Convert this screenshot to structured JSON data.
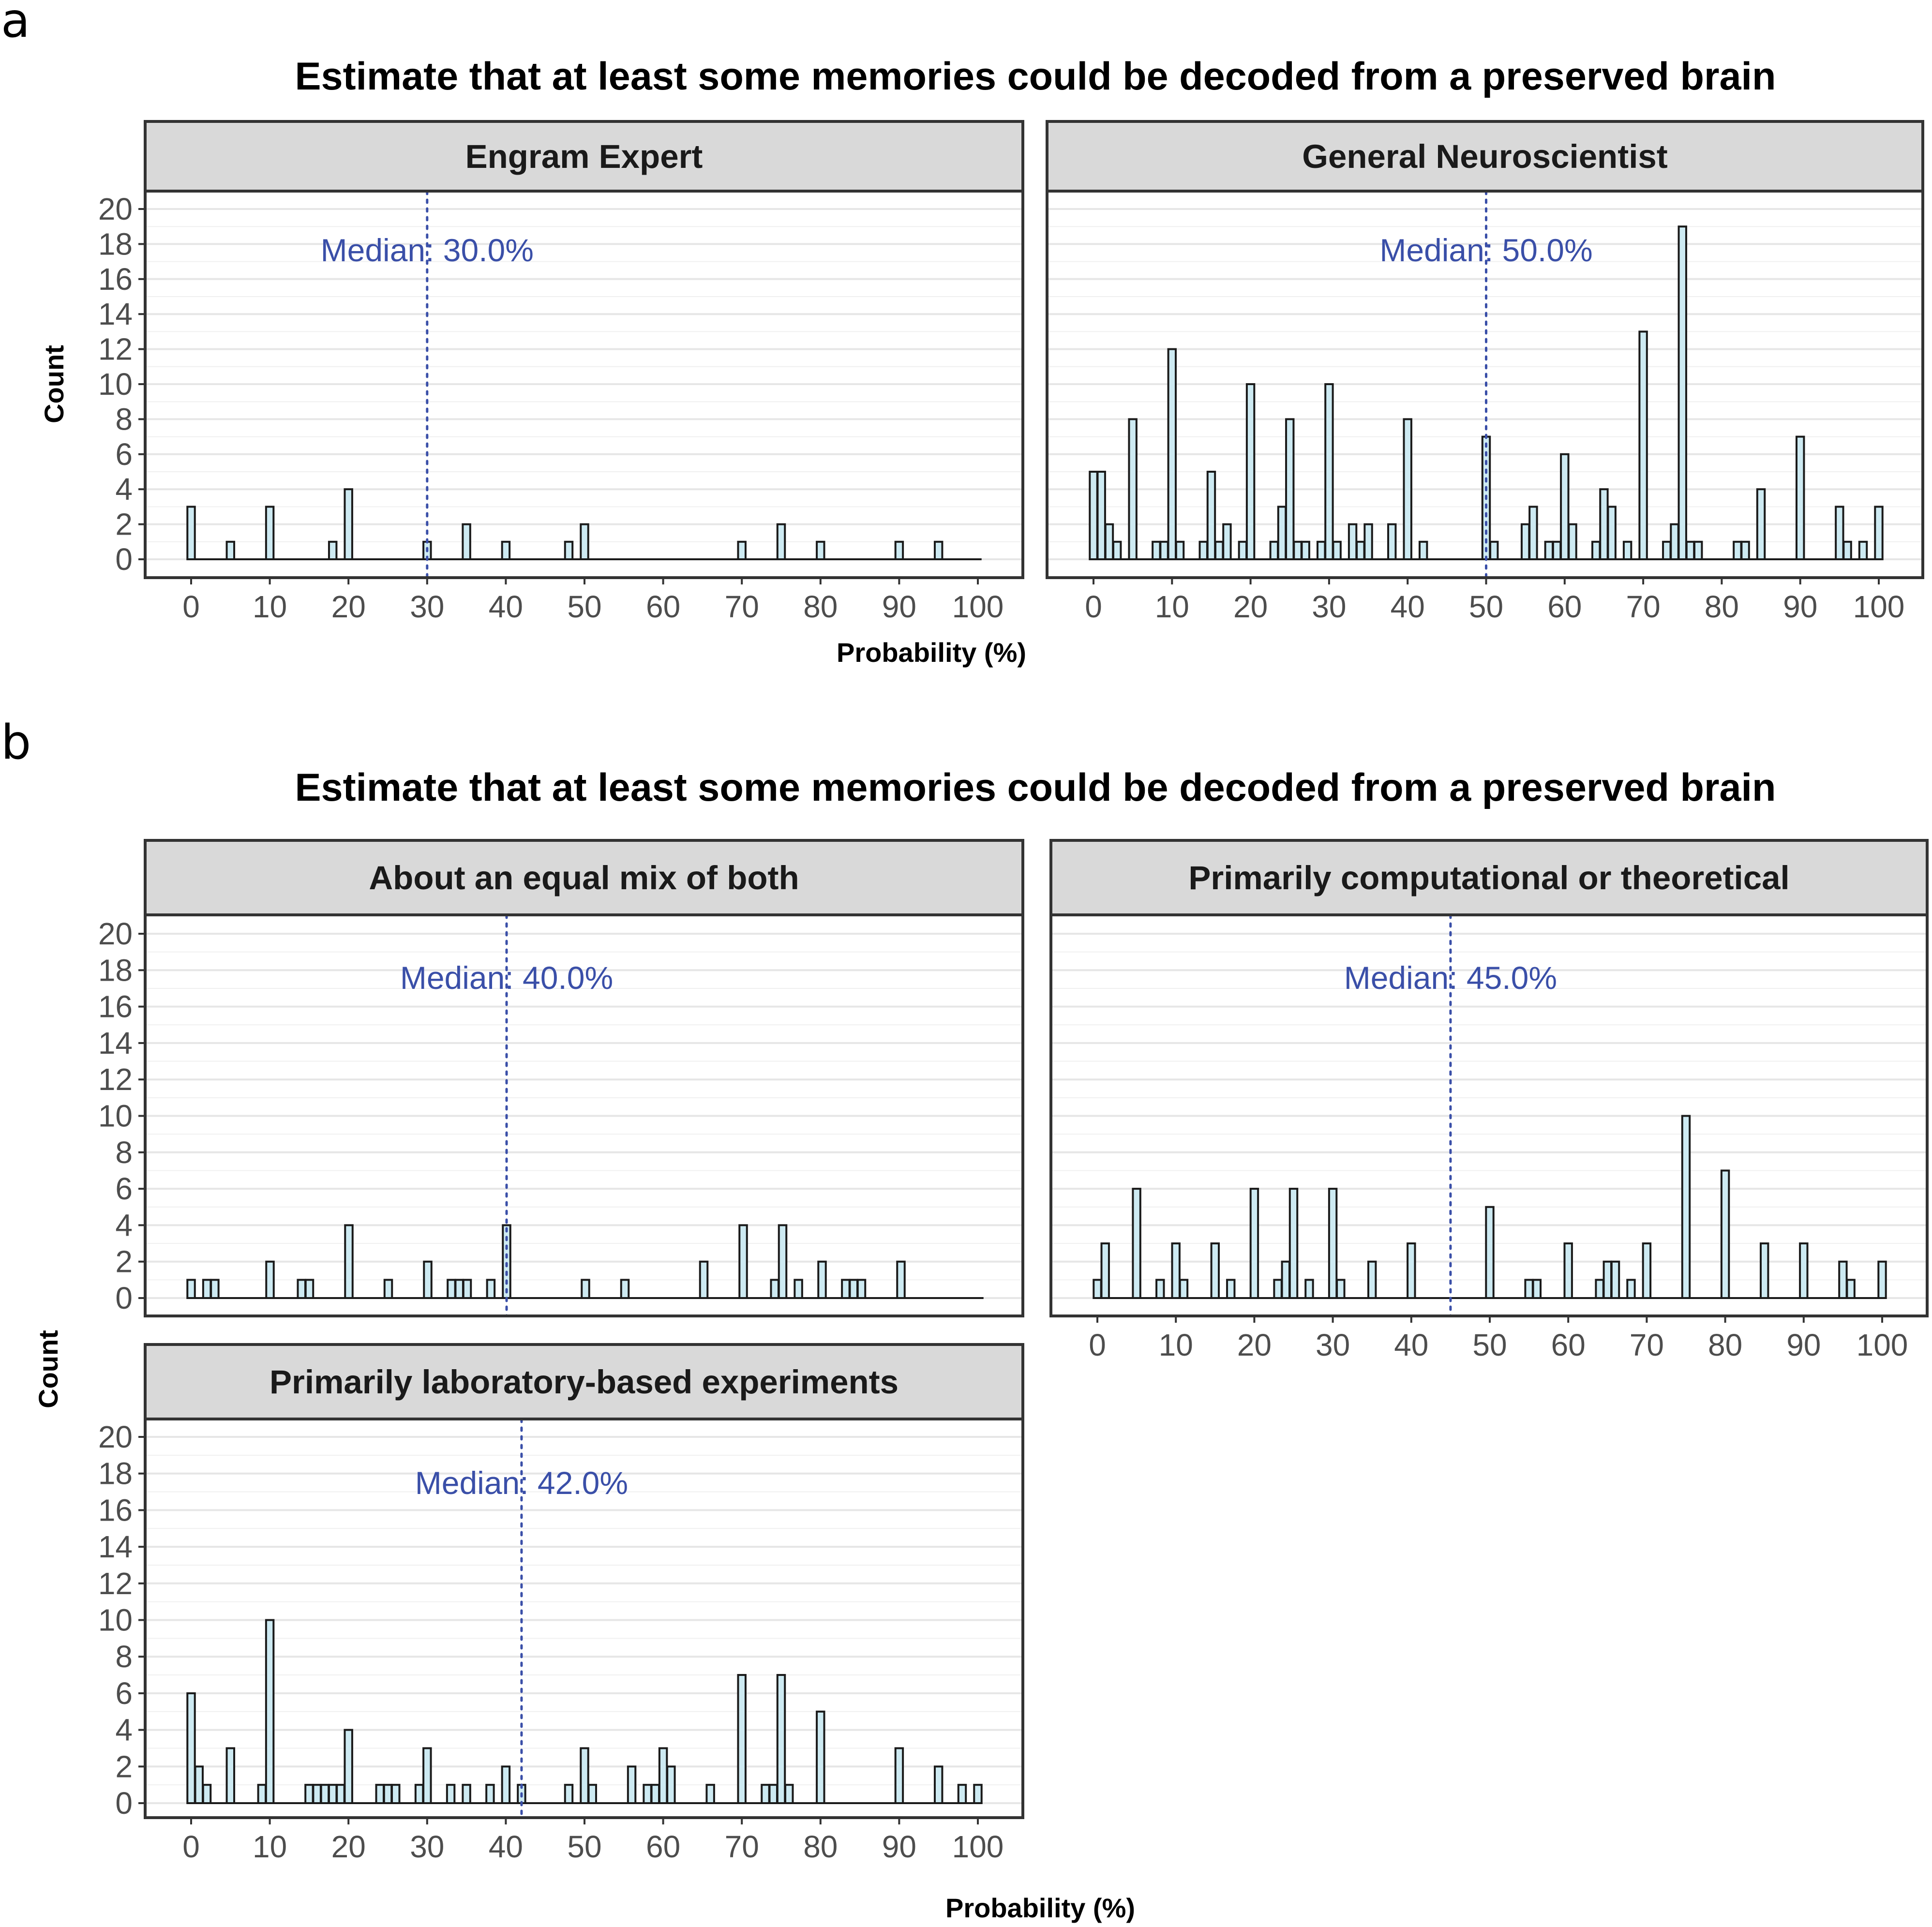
{
  "colors": {
    "bar_fill": "#cdeaf2",
    "bar_stroke": "#1a1a1a",
    "median": "#3a4fa8",
    "strip_fill": "#d9d9d9",
    "grid": "#e6e6e6",
    "panel_border": "#333333"
  },
  "figure": {
    "panel_a_letter": "a",
    "panel_b_letter": "b",
    "title_a": "Estimate that at least some memories could be decoded from a preserved brain",
    "title_b": "Estimate that at least some memories could be decoded from a preserved brain",
    "ylabel_a": "Count",
    "ylabel_b": "Count",
    "xlabel_a": "Probability (%)",
    "xlabel_b": "Probability (%)"
  },
  "chart_data": [
    {
      "type": "bar",
      "title": "Engram Expert",
      "xlabel": "Probability (%)",
      "ylabel": "Count",
      "xlim": [
        0,
        100
      ],
      "ylim": [
        0,
        20
      ],
      "xticks": [
        0,
        10,
        20,
        30,
        40,
        50,
        60,
        70,
        80,
        90,
        100
      ],
      "yticks": [
        0,
        2,
        4,
        6,
        8,
        10,
        12,
        14,
        16,
        18,
        20
      ],
      "median_value": 30,
      "median_text": "Median: 30.0%",
      "x": [
        0,
        5,
        10,
        18,
        20,
        30,
        35,
        40,
        48,
        50,
        70,
        75,
        80,
        90,
        95
      ],
      "values": [
        3,
        1,
        3,
        1,
        4,
        1,
        2,
        1,
        1,
        2,
        1,
        2,
        1,
        1,
        1
      ]
    },
    {
      "type": "bar",
      "title": "General Neuroscientist",
      "xlabel": "Probability (%)",
      "ylabel": "Count",
      "xlim": [
        0,
        100
      ],
      "ylim": [
        0,
        20
      ],
      "xticks": [
        0,
        10,
        20,
        30,
        40,
        50,
        60,
        70,
        80,
        90,
        100
      ],
      "yticks": [
        0,
        2,
        4,
        6,
        8,
        10,
        12,
        14,
        16,
        18,
        20
      ],
      "median_value": 50,
      "median_text": "Median: 50.0%",
      "x": [
        0,
        1,
        2,
        3,
        5,
        8,
        9,
        10,
        11,
        14,
        15,
        16,
        17,
        19,
        20,
        23,
        24,
        25,
        26,
        27,
        29,
        30,
        31,
        33,
        34,
        35,
        38,
        40,
        42,
        50,
        51,
        55,
        56,
        58,
        59,
        60,
        61,
        64,
        65,
        66,
        68,
        70,
        73,
        74,
        75,
        76,
        77,
        82,
        83,
        85,
        90,
        95,
        96,
        98,
        100
      ],
      "values": [
        5,
        5,
        2,
        1,
        8,
        1,
        1,
        12,
        1,
        1,
        5,
        1,
        2,
        1,
        10,
        1,
        3,
        8,
        1,
        1,
        1,
        10,
        1,
        2,
        1,
        2,
        2,
        8,
        1,
        7,
        1,
        2,
        3,
        1,
        1,
        6,
        2,
        1,
        4,
        3,
        1,
        13,
        1,
        2,
        19,
        1,
        1,
        1,
        1,
        4,
        7,
        3,
        1,
        1,
        3
      ]
    },
    {
      "type": "bar",
      "title": "About an equal mix of both",
      "xlabel": "Probability (%)",
      "ylabel": "Count",
      "xlim": [
        0,
        100
      ],
      "ylim": [
        0,
        20
      ],
      "xticks": [
        0,
        10,
        20,
        30,
        40,
        50,
        60,
        70,
        80,
        90,
        100
      ],
      "yticks": [
        0,
        2,
        4,
        6,
        8,
        10,
        12,
        14,
        16,
        18,
        20
      ],
      "median_value": 40,
      "median_text": "Median: 40.0%",
      "x": [
        0,
        2,
        3,
        10,
        14,
        15,
        20,
        25,
        30,
        33,
        34,
        35,
        38,
        40,
        50,
        55,
        65,
        70,
        74,
        75,
        77,
        80,
        83,
        84,
        85,
        90
      ],
      "values": [
        1,
        1,
        1,
        2,
        1,
        1,
        4,
        1,
        2,
        1,
        1,
        1,
        1,
        4,
        1,
        1,
        2,
        4,
        1,
        4,
        1,
        2,
        1,
        1,
        1,
        2
      ]
    },
    {
      "type": "bar",
      "title": "Primarily computational or theoretical",
      "xlabel": "Probability (%)",
      "ylabel": "Count",
      "xlim": [
        0,
        100
      ],
      "ylim": [
        0,
        20
      ],
      "xticks": [
        0,
        10,
        20,
        30,
        40,
        50,
        60,
        70,
        80,
        90,
        100
      ],
      "yticks": [
        0,
        2,
        4,
        6,
        8,
        10,
        12,
        14,
        16,
        18,
        20
      ],
      "median_value": 45,
      "median_text": "Median: 45.0%",
      "x": [
        0,
        1,
        5,
        8,
        10,
        11,
        15,
        17,
        20,
        23,
        24,
        25,
        27,
        30,
        31,
        35,
        40,
        50,
        55,
        56,
        60,
        64,
        65,
        66,
        68,
        70,
        75,
        80,
        85,
        90,
        95,
        96,
        100
      ],
      "values": [
        1,
        3,
        6,
        1,
        3,
        1,
        3,
        1,
        6,
        1,
        2,
        6,
        1,
        6,
        1,
        2,
        3,
        5,
        1,
        1,
        3,
        1,
        2,
        2,
        1,
        3,
        10,
        7,
        3,
        3,
        2,
        1,
        2
      ]
    },
    {
      "type": "bar",
      "title": "Primarily laboratory-based experiments",
      "xlabel": "Probability (%)",
      "ylabel": "Count",
      "xlim": [
        0,
        100
      ],
      "ylim": [
        0,
        20
      ],
      "xticks": [
        0,
        10,
        20,
        30,
        40,
        50,
        60,
        70,
        80,
        90,
        100
      ],
      "yticks": [
        0,
        2,
        4,
        6,
        8,
        10,
        12,
        14,
        16,
        18,
        20
      ],
      "median_value": 42,
      "median_text": "Median: 42.0%",
      "x": [
        0,
        1,
        2,
        5,
        9,
        10,
        15,
        16,
        17,
        18,
        19,
        20,
        24,
        25,
        26,
        29,
        30,
        33,
        35,
        38,
        40,
        42,
        48,
        50,
        51,
        56,
        58,
        59,
        60,
        61,
        66,
        70,
        73,
        74,
        75,
        76,
        80,
        90,
        95,
        98,
        100
      ],
      "values": [
        6,
        2,
        1,
        3,
        1,
        10,
        1,
        1,
        1,
        1,
        1,
        4,
        1,
        1,
        1,
        1,
        3,
        1,
        1,
        1,
        2,
        1,
        1,
        3,
        1,
        2,
        1,
        1,
        3,
        2,
        1,
        7,
        1,
        1,
        7,
        1,
        5,
        3,
        2,
        1,
        1
      ]
    }
  ]
}
